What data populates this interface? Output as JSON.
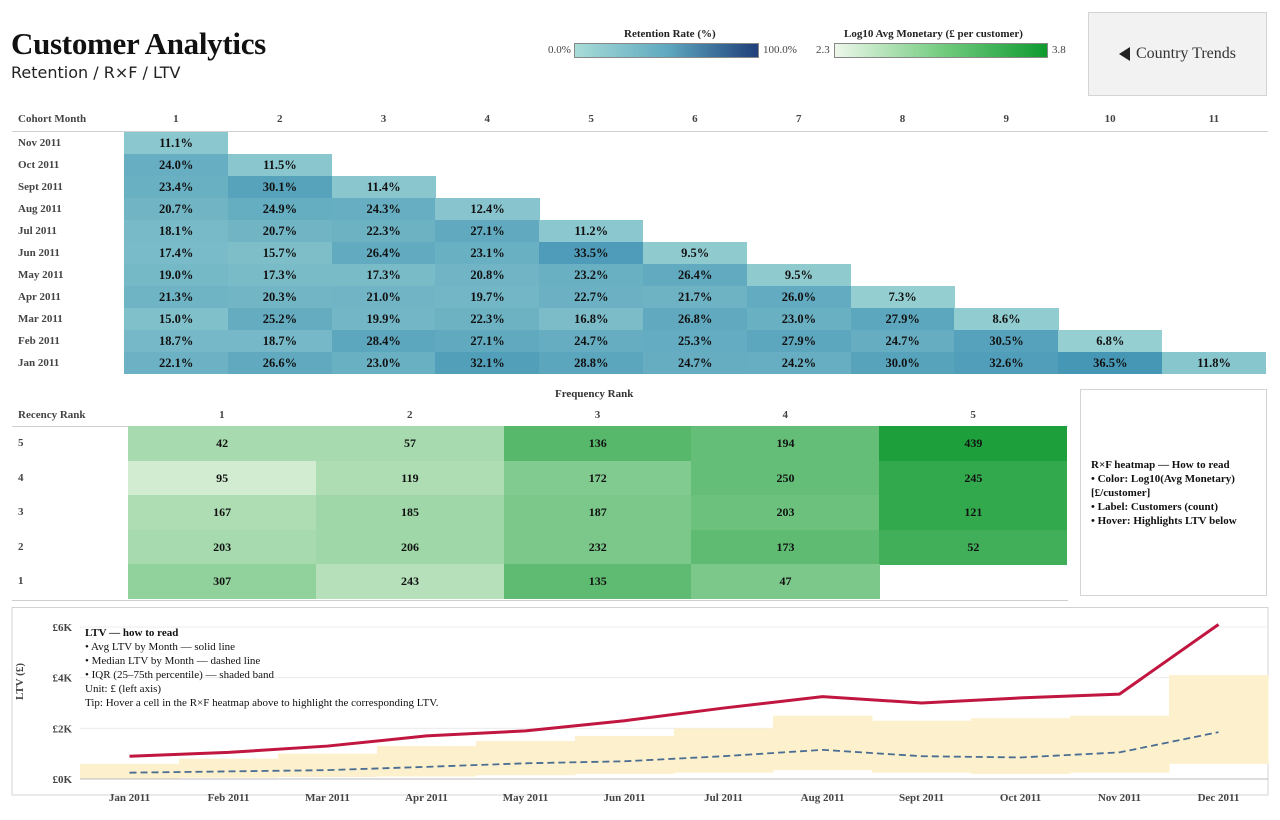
{
  "header": {
    "title": "Customer Analytics",
    "subtitle": "Retention / R×F / LTV",
    "country_button_label": "Country Trends"
  },
  "legends": {
    "retention": {
      "title": "Retention Rate (%)",
      "min_label": "0.0%",
      "max_label": "100.0%",
      "color_start": "#a8dcd8",
      "color_end": "#1f3f7a"
    },
    "monetary": {
      "title": "Log10 Avg Monetary (£ per customer)",
      "min_label": "2.3",
      "max_label": "3.8",
      "color_start": "#edf7ea",
      "color_end": "#0e9a2f"
    }
  },
  "chart_data": [
    {
      "type": "heatmap",
      "name": "cohort_retention",
      "row_header": "Cohort Month",
      "columns": [
        "1",
        "2",
        "3",
        "4",
        "5",
        "6",
        "7",
        "8",
        "9",
        "10",
        "11"
      ],
      "rows": [
        {
          "label": "Nov 2011",
          "values": [
            11.1
          ]
        },
        {
          "label": "Oct 2011",
          "values": [
            24.0,
            11.5
          ]
        },
        {
          "label": "Sept 2011",
          "values": [
            23.4,
            30.1,
            11.4
          ]
        },
        {
          "label": "Aug 2011",
          "values": [
            20.7,
            24.9,
            24.3,
            12.4
          ]
        },
        {
          "label": "Jul 2011",
          "values": [
            18.1,
            20.7,
            22.3,
            27.1,
            11.2
          ]
        },
        {
          "label": "Jun 2011",
          "values": [
            17.4,
            15.7,
            26.4,
            23.1,
            33.5,
            9.5
          ]
        },
        {
          "label": "May 2011",
          "values": [
            19.0,
            17.3,
            17.3,
            20.8,
            23.2,
            26.4,
            9.5
          ]
        },
        {
          "label": "Apr 2011",
          "values": [
            21.3,
            20.3,
            21.0,
            19.7,
            22.7,
            21.7,
            26.0,
            7.3
          ]
        },
        {
          "label": "Mar 2011",
          "values": [
            15.0,
            25.2,
            19.9,
            22.3,
            16.8,
            26.8,
            23.0,
            27.9,
            8.6
          ]
        },
        {
          "label": "Feb 2011",
          "values": [
            18.7,
            18.7,
            28.4,
            27.1,
            24.7,
            25.3,
            27.9,
            24.7,
            30.5,
            6.8
          ]
        },
        {
          "label": "Jan 2011",
          "values": [
            22.1,
            26.6,
            23.0,
            32.1,
            28.8,
            24.7,
            24.2,
            30.0,
            32.6,
            36.5,
            11.8
          ]
        }
      ],
      "value_suffix": "%"
    },
    {
      "type": "heatmap",
      "name": "rxf",
      "title": "Frequency Rank",
      "row_header": "Recency Rank",
      "columns": [
        "1",
        "2",
        "3",
        "4",
        "5"
      ],
      "rows": [
        {
          "label": "5",
          "counts": [
            42,
            57,
            136,
            194,
            439
          ],
          "log_monetary": [
            2.75,
            2.75,
            3.3,
            3.2,
            3.7
          ]
        },
        {
          "label": "4",
          "counts": [
            95,
            119,
            172,
            250,
            245
          ],
          "log_monetary": [
            2.45,
            2.7,
            3.0,
            3.2,
            3.55
          ]
        },
        {
          "label": "3",
          "counts": [
            167,
            185,
            187,
            203,
            121
          ],
          "log_monetary": [
            2.7,
            2.8,
            3.05,
            3.15,
            3.55
          ]
        },
        {
          "label": "2",
          "counts": [
            203,
            206,
            232,
            173,
            52
          ],
          "log_monetary": [
            2.75,
            2.8,
            3.05,
            3.25,
            3.45
          ]
        },
        {
          "label": "1",
          "counts": [
            307,
            243,
            135,
            47,
            null
          ],
          "log_monetary": [
            2.9,
            2.65,
            3.25,
            3.05,
            null
          ]
        }
      ]
    },
    {
      "type": "line",
      "name": "ltv",
      "ylabel": "LTV (£)",
      "x": [
        "Jan 2011",
        "Feb 2011",
        "Mar 2011",
        "Apr 2011",
        "May 2011",
        "Jun 2011",
        "Jul 2011",
        "Aug 2011",
        "Sept 2011",
        "Oct 2011",
        "Nov 2011",
        "Dec 2011"
      ],
      "yticks": [
        "£0K",
        "£2K",
        "£4K",
        "£6K"
      ],
      "ylim": [
        0,
        6000
      ],
      "series": [
        {
          "name": "Avg LTV by Month",
          "style": "solid",
          "color": "#c0163f",
          "values": [
            900,
            1050,
            1300,
            1700,
            1900,
            2300,
            2800,
            3250,
            3000,
            3200,
            3350,
            6100
          ]
        },
        {
          "name": "Median LTV by Month",
          "style": "dashed",
          "color": "#4a6d92",
          "values": [
            250,
            300,
            350,
            480,
            620,
            700,
            900,
            1150,
            900,
            850,
            1050,
            1850
          ]
        }
      ],
      "band": {
        "name": "IQR (25–75th percentile)",
        "color": "#fdf0cc",
        "low": [
          0,
          50,
          80,
          100,
          150,
          200,
          250,
          350,
          250,
          200,
          250,
          600
        ],
        "high": [
          600,
          800,
          1000,
          1300,
          1500,
          1700,
          2000,
          2500,
          2300,
          2400,
          2500,
          4100
        ]
      }
    }
  ],
  "rxf_note": {
    "title": "R×F heatmap — How to read",
    "lines": [
      "• Color: Log10(Avg Monetary) [£/customer]",
      "• Label: Customers (count)",
      "• Hover: Highlights LTV below"
    ]
  },
  "ltv_note": {
    "title": "LTV — how to read",
    "lines": [
      "• Avg LTV by Month — solid line",
      "• Median LTV by Month — dashed line",
      "• IQR (25–75th percentile) — shaded band",
      "Unit: £ (left axis)",
      "Tip: Hover a cell in the R×F heatmap above to highlight the corresponding LTV."
    ]
  }
}
